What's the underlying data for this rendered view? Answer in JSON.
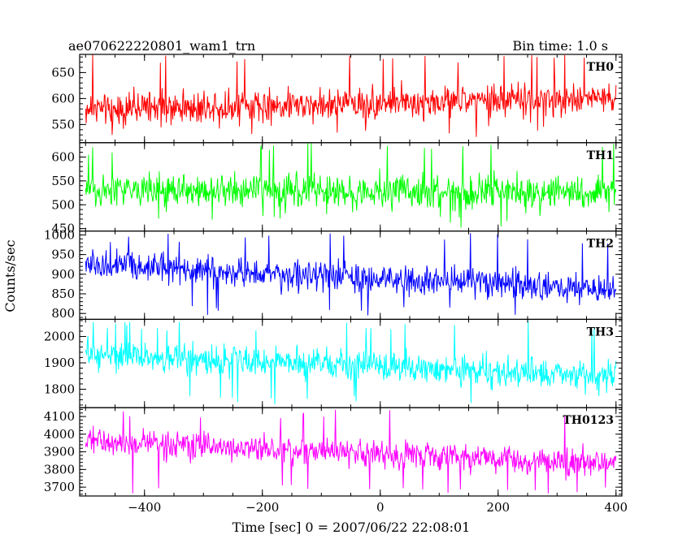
{
  "header": {
    "title": "ae070622220801_wam1_trn",
    "bin_time": "Bin time: 1.0 s"
  },
  "chart_data": {
    "type": "line",
    "xlabel": "Time [sec] 0 = 2007/06/22 22:08:01",
    "ylabel": "Counts/sec",
    "xlim": [
      -510,
      410
    ],
    "x_ticks": [
      -400,
      -200,
      0,
      200,
      400
    ],
    "x_sampling": {
      "start": -500,
      "end": 400,
      "step": 1
    },
    "panels": [
      {
        "name": "TH0",
        "color": "#ff0000",
        "ylim": [
          515,
          685
        ],
        "y_ticks": [
          550,
          600,
          650
        ],
        "level_start": 580,
        "level_end": 600,
        "noise_amplitude": 45,
        "spike_min": 525,
        "spike_max": 685
      },
      {
        "name": "TH1",
        "color": "#00ff00",
        "ylim": [
          445,
          630
        ],
        "y_ticks": [
          450,
          500,
          550,
          600
        ],
        "level_start": 530,
        "level_end": 525,
        "noise_amplitude": 50,
        "spike_min": 450,
        "spike_max": 630
      },
      {
        "name": "TH2",
        "color": "#0000ff",
        "ylim": [
          785,
          1010
        ],
        "y_ticks": [
          800,
          850,
          900,
          950,
          1000
        ],
        "level_start": 925,
        "level_end": 860,
        "noise_amplitude": 55,
        "spike_min": 795,
        "spike_max": 1005
      },
      {
        "name": "TH3",
        "color": "#00ffff",
        "ylim": [
          1730,
          2065
        ],
        "y_ticks": [
          1800,
          1900,
          2000
        ],
        "level_start": 1930,
        "level_end": 1850,
        "noise_amplitude": 80,
        "spike_min": 1740,
        "spike_max": 2060
      },
      {
        "name": "TH0123",
        "color": "#ff00ff",
        "ylim": [
          3650,
          4150
        ],
        "y_ticks": [
          3700,
          3800,
          3900,
          4000,
          4100
        ],
        "level_start": 3960,
        "level_end": 3830,
        "noise_amplitude": 110,
        "spike_min": 3660,
        "spike_max": 4140
      }
    ]
  }
}
